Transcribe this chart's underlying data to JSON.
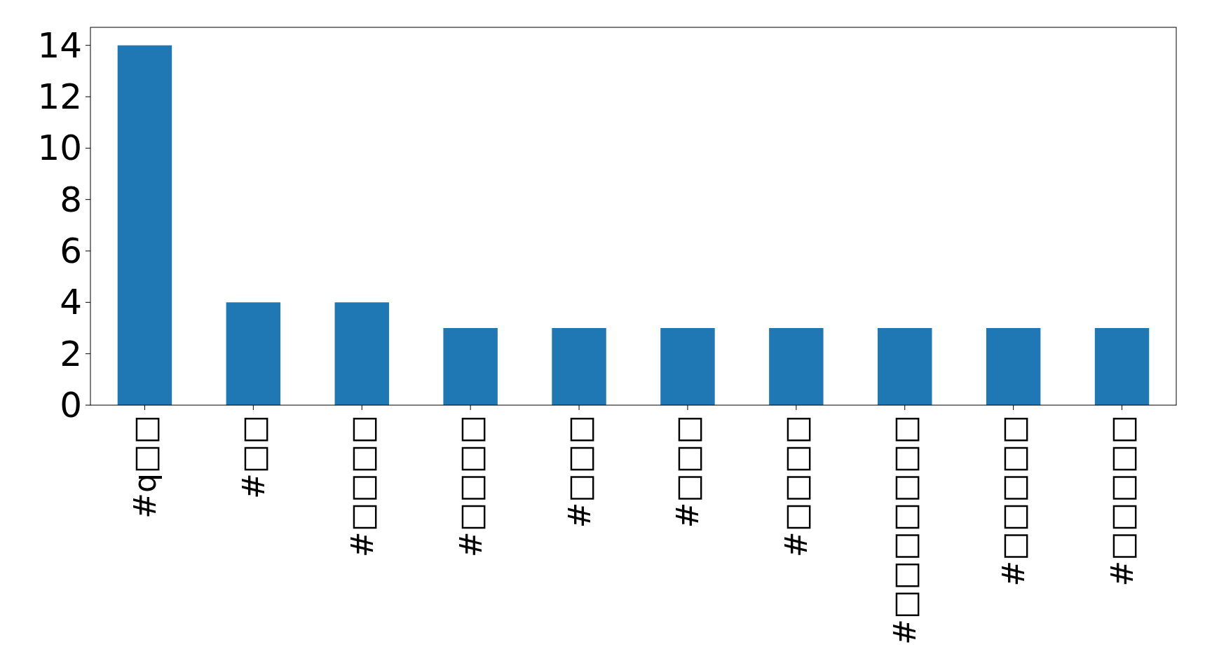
{
  "chart_data": {
    "type": "bar",
    "categories": [
      "#q□□",
      "#□□",
      "#□□□□",
      "#□□□□",
      "#□□□",
      "#□□□",
      "#□□□□",
      "#□□□□□□□",
      "#□□□□□",
      "#□□□□□"
    ],
    "values": [
      14,
      4,
      4,
      3,
      3,
      3,
      3,
      3,
      3,
      3
    ],
    "color": "#1f77b4",
    "ylim": [
      0,
      14.7
    ],
    "yticks": [
      0,
      2,
      4,
      6,
      8,
      10,
      12,
      14
    ],
    "grid": false
  }
}
